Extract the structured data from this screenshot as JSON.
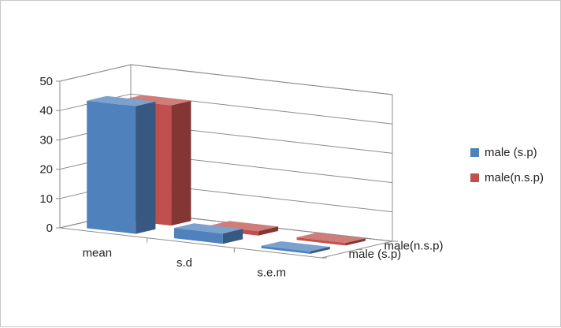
{
  "chart_data": {
    "type": "bar",
    "title": "",
    "xlabel": "",
    "ylabel": "",
    "categories": [
      "mean",
      "s.d",
      "s.e.m"
    ],
    "series": [
      {
        "name": "male (s.p)",
        "values": [
          43.5,
          3.5,
          0.8
        ],
        "color": "#4F81BD"
      },
      {
        "name": "male(n.s.p)",
        "values": [
          41.0,
          1.5,
          0.9
        ],
        "color": "#C0504D"
      }
    ],
    "y_ticks": [
      "0",
      "10",
      "20",
      "30",
      "40",
      "50"
    ],
    "ylim": [
      0,
      50
    ],
    "grid": true,
    "legend_position": "right",
    "three_d": true
  }
}
